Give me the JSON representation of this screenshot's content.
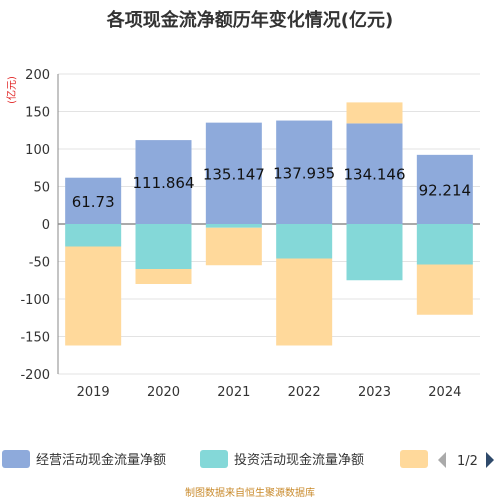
{
  "chart_data": {
    "type": "bar",
    "stacked": true,
    "title": "各项现金流净额历年变化情况(亿元)",
    "ylabel": "(亿元)",
    "ylim": [
      -200,
      200
    ],
    "yticks": [
      200,
      150,
      100,
      50,
      0,
      -50,
      -100,
      -150,
      -200
    ],
    "grid": true,
    "legend_position": "bottom",
    "categories": [
      "2019",
      "2020",
      "2021",
      "2022",
      "2023",
      "2024"
    ],
    "series": [
      {
        "name": "经营活动现金流量净额",
        "color": "#8eaadb",
        "values": [
          61.73,
          111.864,
          135.147,
          137.935,
          134.146,
          92.214
        ],
        "data_labels": [
          "61.73",
          "111.864",
          "135.147",
          "137.935",
          "134.146",
          "92.214"
        ]
      },
      {
        "name": "投资活动现金流量净额",
        "color": "#84d8d8",
        "values": [
          -30,
          -60,
          -5,
          -46,
          -75,
          -54
        ]
      },
      {
        "name": "",
        "color": "#ffd99b",
        "values": [
          -132,
          -20,
          -50,
          -116,
          28,
          -67
        ]
      }
    ]
  },
  "legend": {
    "page_indicator": "1/2",
    "prev_icon": "triangle-left-icon",
    "next_icon": "triangle-right-icon"
  },
  "footer": {
    "text": "制图数据来自恒生聚源数据库"
  }
}
